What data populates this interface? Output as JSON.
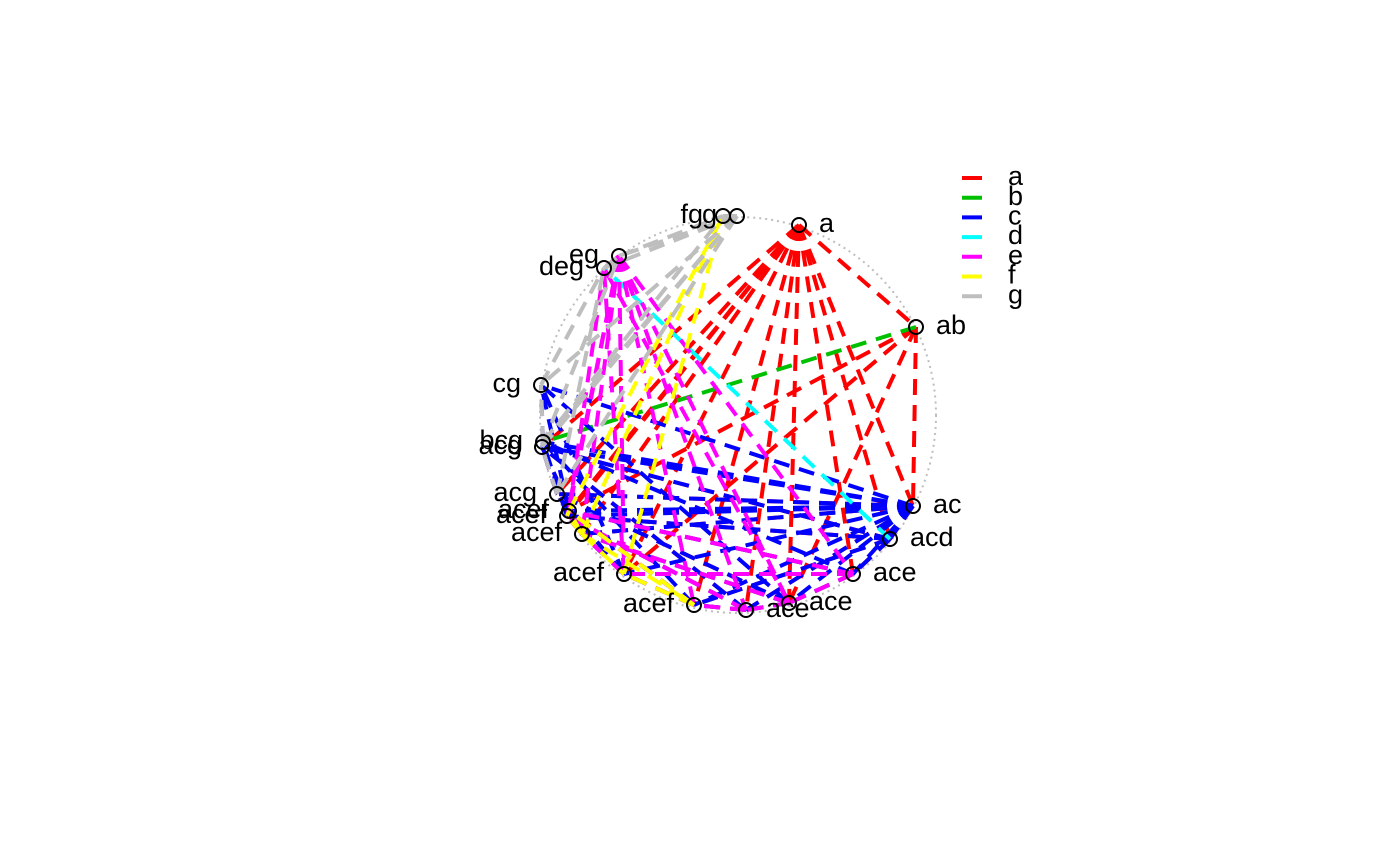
{
  "diagram": {
    "type": "circular-set-graph",
    "nodes": [
      {
        "label": "a"
      },
      {
        "label": "ab"
      },
      {
        "label": "ac"
      },
      {
        "label": "acd"
      },
      {
        "label": "ace"
      },
      {
        "label": "ace"
      },
      {
        "label": "ace"
      },
      {
        "label": "acef"
      },
      {
        "label": "acef"
      },
      {
        "label": "acef"
      },
      {
        "label": "acef"
      },
      {
        "label": "acef"
      },
      {
        "label": "acg"
      },
      {
        "label": "acg"
      },
      {
        "label": "bcg"
      },
      {
        "label": "cg"
      },
      {
        "label": "deg"
      },
      {
        "label": "eg"
      },
      {
        "label": "fg"
      },
      {
        "label": "g"
      }
    ],
    "legend": [
      {
        "label": "a",
        "color": "#FF0000"
      },
      {
        "label": "b",
        "color": "#00C000"
      },
      {
        "label": "c",
        "color": "#0000FF"
      },
      {
        "label": "d",
        "color": "#00FFFF"
      },
      {
        "label": "e",
        "color": "#FF00FF"
      },
      {
        "label": "f",
        "color": "#FFFF00"
      },
      {
        "label": "g",
        "color": "#BEBEBE"
      }
    ],
    "circle_color": "#BEBEBE",
    "edge_style": "dashed"
  }
}
